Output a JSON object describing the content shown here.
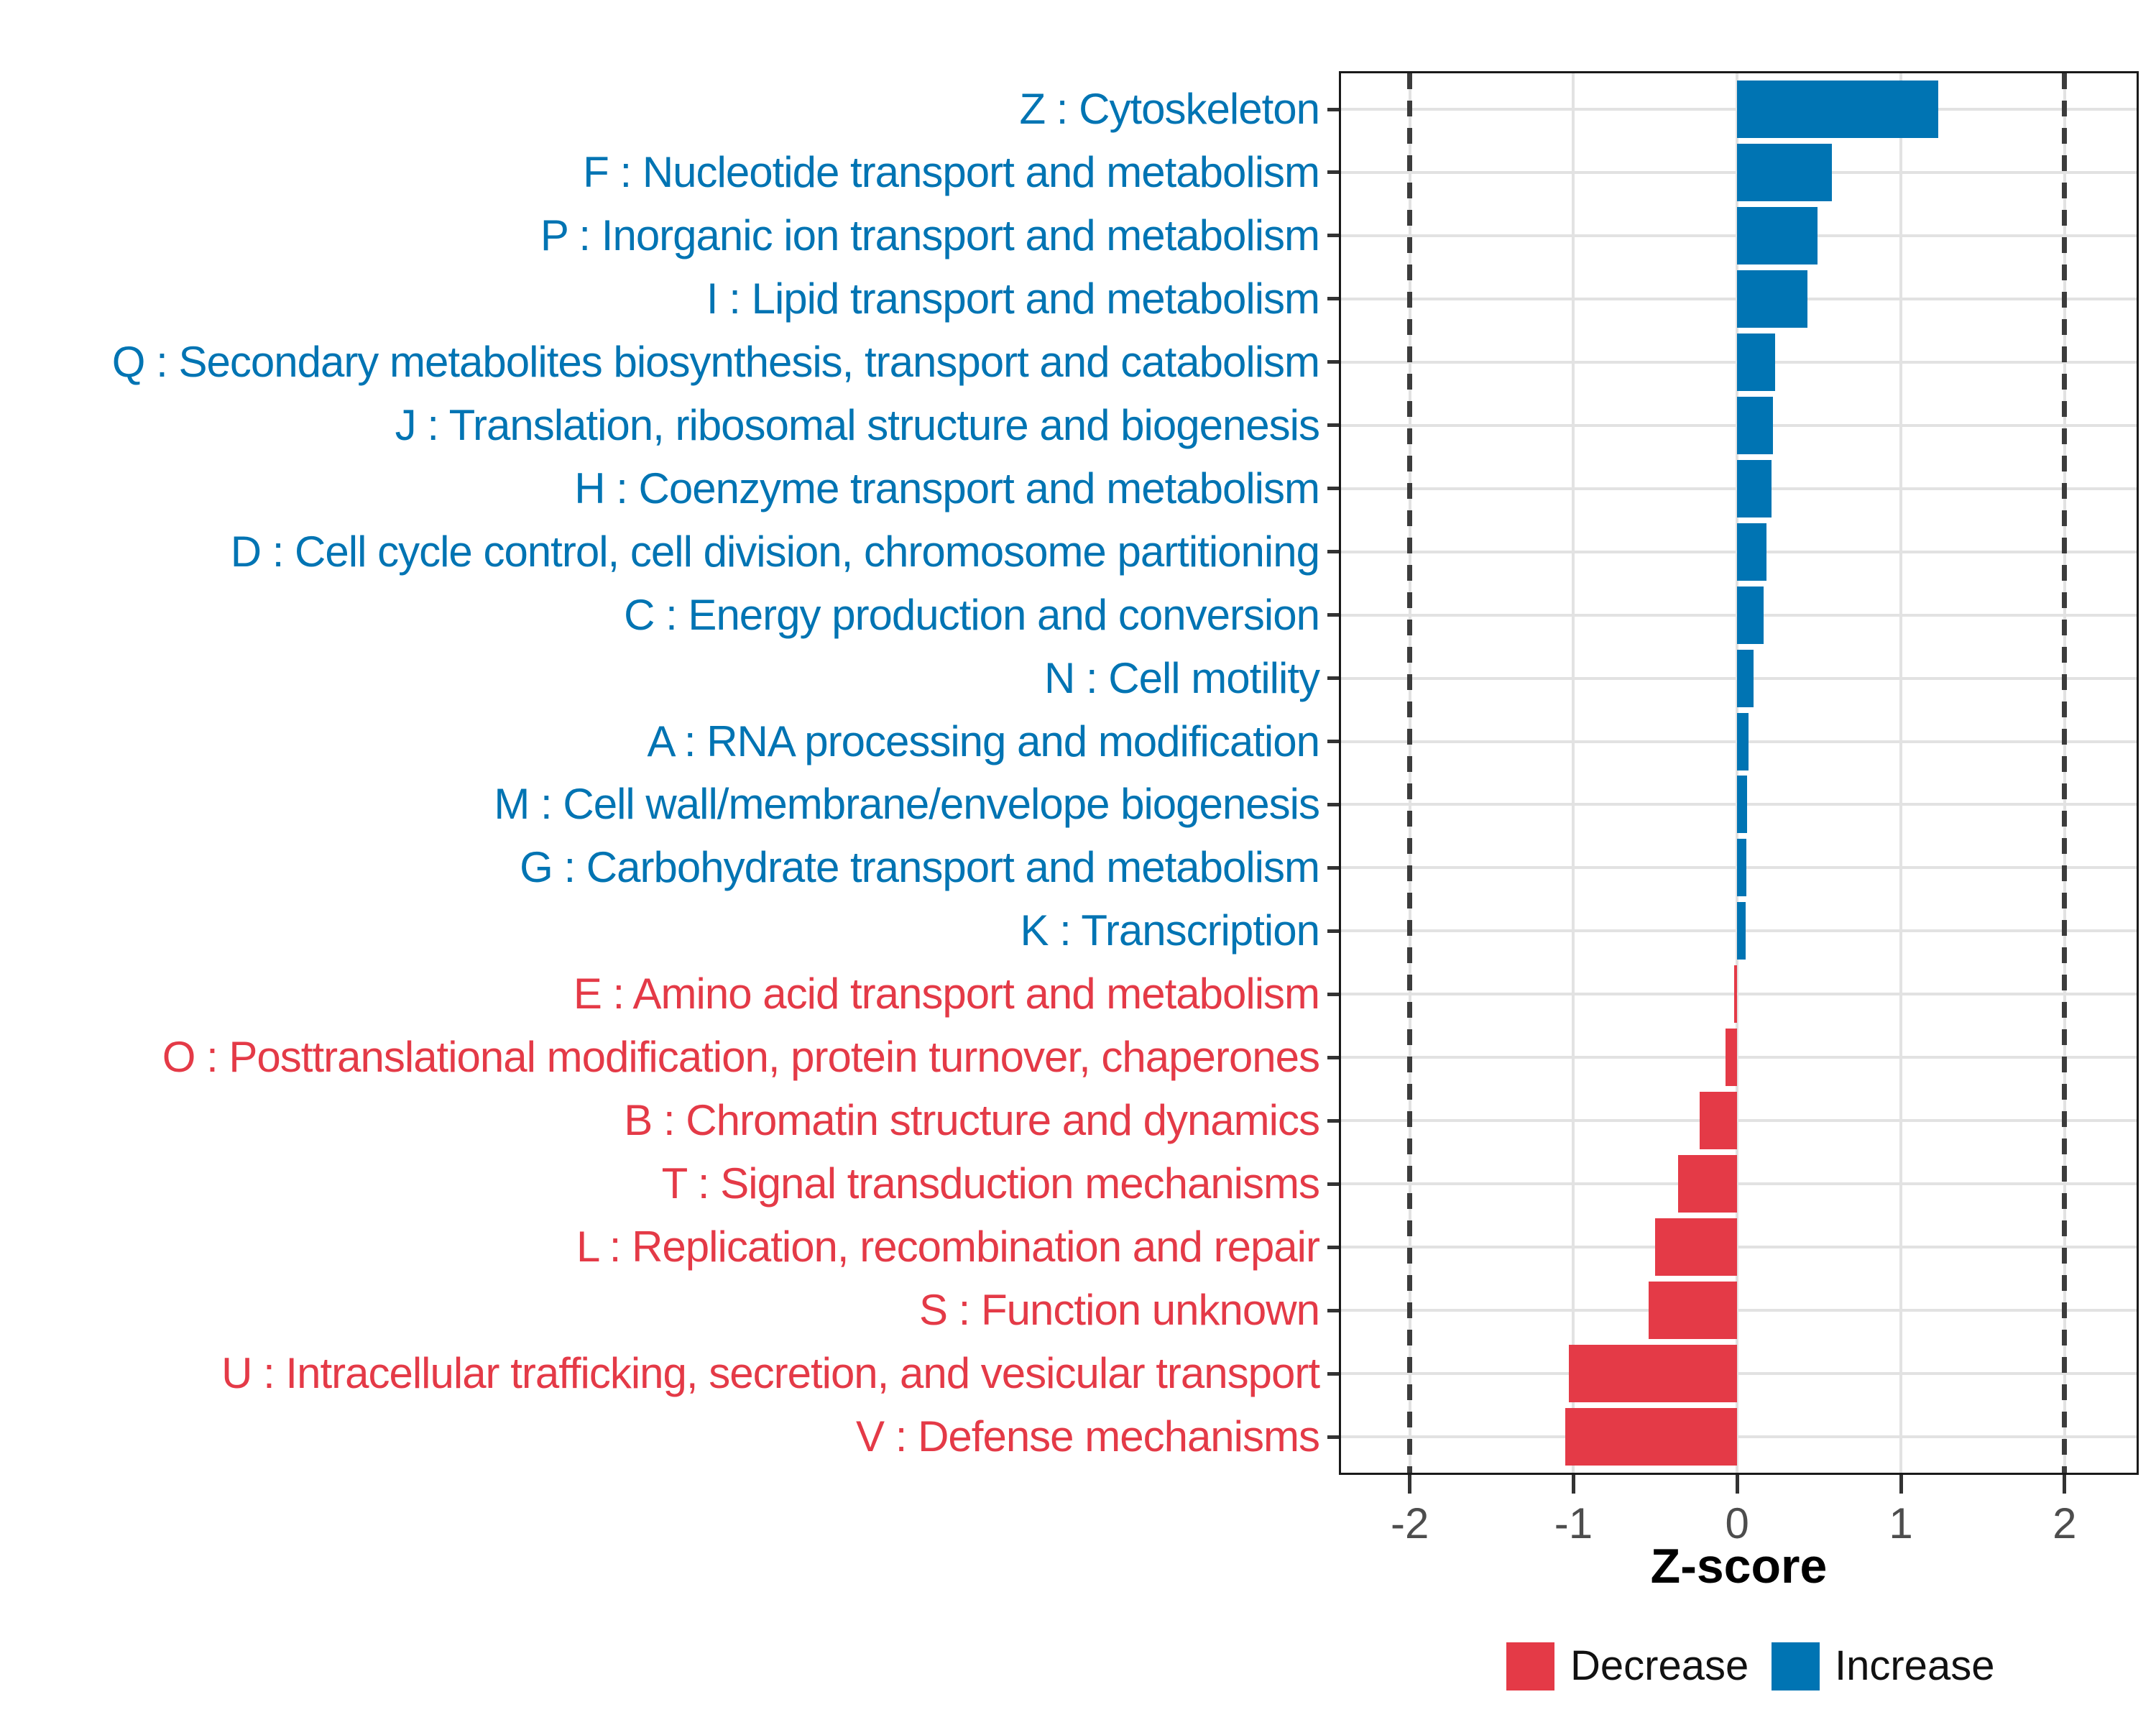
{
  "figure": {
    "background": "#ffffff",
    "panel_border_color": "#1a1a1a",
    "gridline_color": "#e2e2e2",
    "dashed_line_color": "#3c3c3c",
    "axis_text_color": "#4d4d4d"
  },
  "chart_data": {
    "type": "bar",
    "orientation": "horizontal",
    "title": "",
    "xlabel": "Z-score",
    "ylabel": "",
    "x_range": [
      -2.42,
      2.44
    ],
    "x_ticks": [
      -2,
      -1,
      0,
      1,
      2
    ],
    "x_tick_labels": [
      "-2",
      "-1",
      "0",
      "1",
      "2"
    ],
    "dashed_lines_at": [
      -2,
      2
    ],
    "grid": true,
    "legend_position": "bottom-right",
    "colors": {
      "increase": "#0074b3",
      "decrease": "#e43a47"
    },
    "categories": [
      {
        "label": "Z : Cytoskeleton",
        "value": 1.23,
        "group": "Increase"
      },
      {
        "label": "F : Nucleotide transport and metabolism",
        "value": 0.58,
        "group": "Increase"
      },
      {
        "label": "P : Inorganic ion transport and metabolism",
        "value": 0.49,
        "group": "Increase"
      },
      {
        "label": "I : Lipid transport and metabolism",
        "value": 0.43,
        "group": "Increase"
      },
      {
        "label": "Q : Secondary metabolites biosynthesis, transport and catabolism",
        "value": 0.23,
        "group": "Increase"
      },
      {
        "label": "J : Translation, ribosomal structure and biogenesis",
        "value": 0.22,
        "group": "Increase"
      },
      {
        "label": "H : Coenzyme transport and metabolism",
        "value": 0.21,
        "group": "Increase"
      },
      {
        "label": "D : Cell cycle control, cell division, chromosome partitioning",
        "value": 0.18,
        "group": "Increase"
      },
      {
        "label": "C : Energy production and conversion",
        "value": 0.16,
        "group": "Increase"
      },
      {
        "label": "N : Cell motility",
        "value": 0.1,
        "group": "Increase"
      },
      {
        "label": "A : RNA processing and modification",
        "value": 0.07,
        "group": "Increase"
      },
      {
        "label": "M : Cell wall/membrane/envelope biogenesis",
        "value": 0.06,
        "group": "Increase"
      },
      {
        "label": "G : Carbohydrate transport and metabolism",
        "value": 0.055,
        "group": "Increase"
      },
      {
        "label": "K : Transcription",
        "value": 0.05,
        "group": "Increase"
      },
      {
        "label": "E : Amino acid transport and metabolism",
        "value": -0.02,
        "group": "Decrease"
      },
      {
        "label": "O : Posttranslational modification, protein turnover, chaperones",
        "value": -0.07,
        "group": "Decrease"
      },
      {
        "label": "B : Chromatin structure and dynamics",
        "value": -0.23,
        "group": "Decrease"
      },
      {
        "label": "T : Signal transduction mechanisms",
        "value": -0.36,
        "group": "Decrease"
      },
      {
        "label": "L : Replication, recombination and repair",
        "value": -0.5,
        "group": "Decrease"
      },
      {
        "label": "S : Function unknown",
        "value": -0.54,
        "group": "Decrease"
      },
      {
        "label": "U : Intracellular trafficking, secretion, and vesicular transport",
        "value": -1.03,
        "group": "Decrease"
      },
      {
        "label": "V : Defense mechanisms",
        "value": -1.05,
        "group": "Decrease"
      }
    ],
    "legend": [
      {
        "label": "Decrease",
        "color": "#e43a47"
      },
      {
        "label": "Increase",
        "color": "#0074b3"
      }
    ]
  }
}
